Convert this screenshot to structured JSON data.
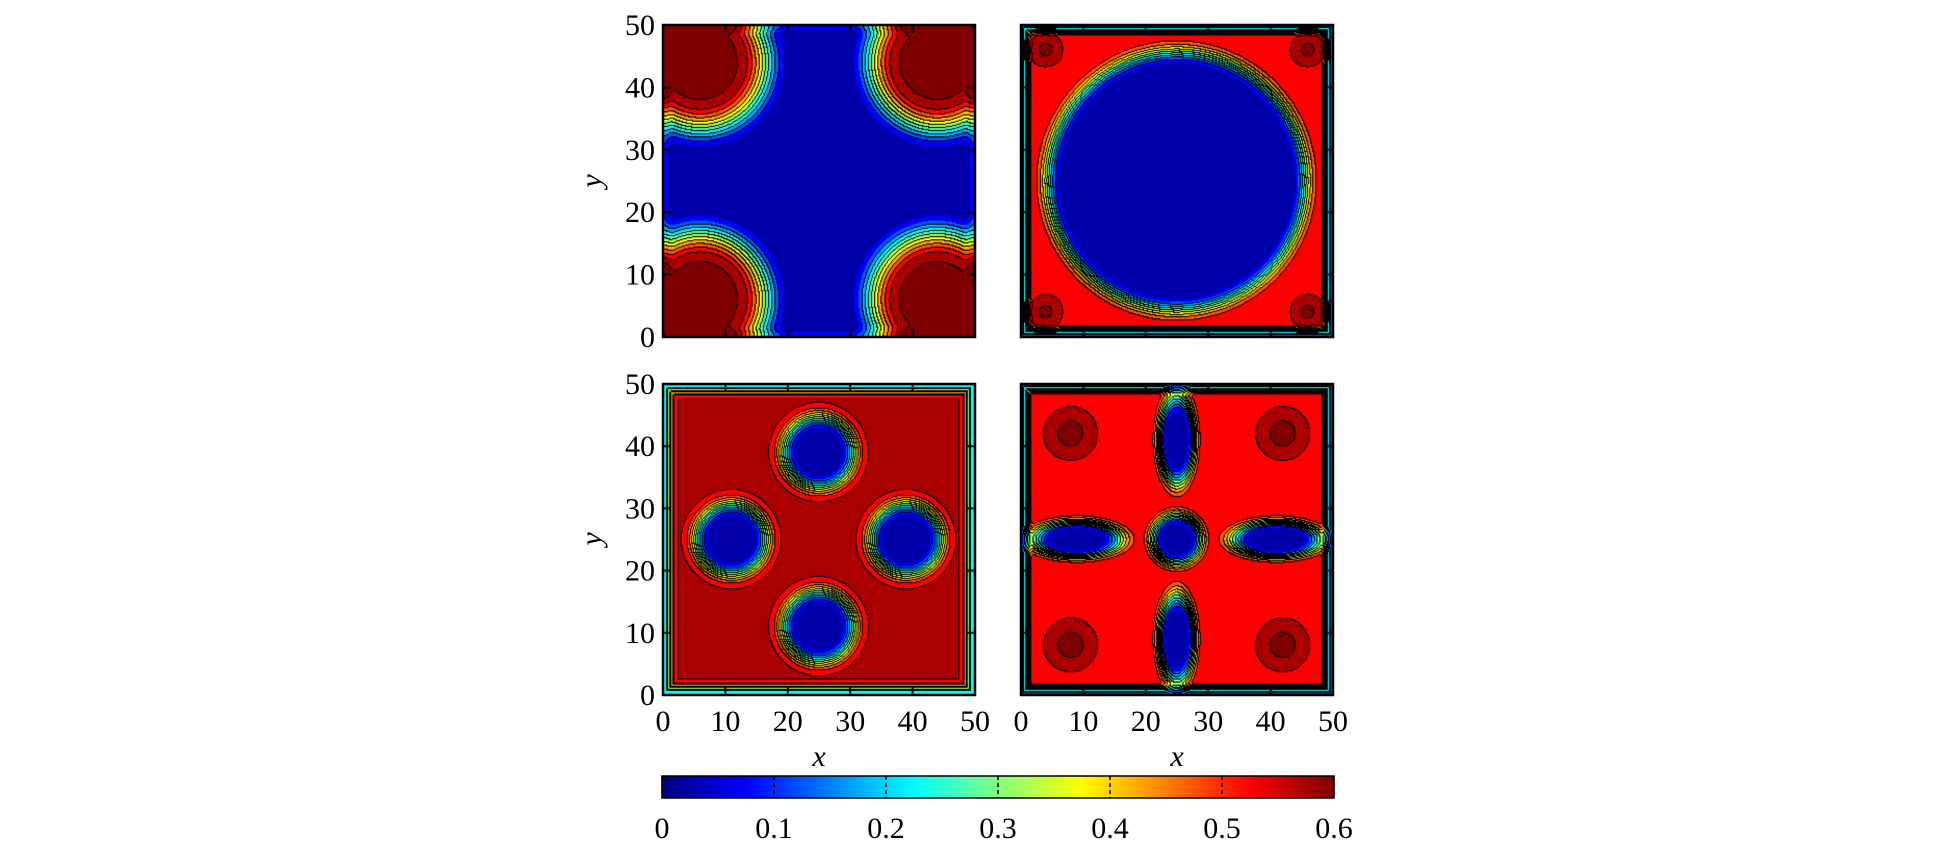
{
  "chart_data": {
    "type": "heatmap",
    "colormap": "jet",
    "colorbar": {
      "range": [
        0,
        0.6
      ],
      "ticks": [
        "0",
        "0.1",
        "0.2",
        "0.3",
        "0.4",
        "0.5",
        "0.6"
      ]
    },
    "contour_levels": [
      0.2,
      0.25,
      0.3,
      0.35,
      0.4,
      0.45,
      0.5,
      0.55
    ],
    "panels": [
      {
        "id": "top-left",
        "xlabel": "",
        "ylabel": "y",
        "xlim": [
          0,
          50
        ],
        "ylim": [
          0,
          50
        ],
        "x_ticks": [],
        "y_ticks": [
          "0",
          "10",
          "20",
          "30",
          "40",
          "50"
        ],
        "pattern": "corner-islands",
        "low": 0.0,
        "high": 0.6
      },
      {
        "id": "top-right",
        "xlabel": "",
        "ylabel": "",
        "xlim": [
          0,
          50
        ],
        "ylim": [
          0,
          50
        ],
        "x_ticks": [],
        "y_ticks": [],
        "pattern": "central-disk",
        "low": 0.0,
        "high": 0.6
      },
      {
        "id": "bottom-left",
        "xlabel": "x",
        "ylabel": "y",
        "xlim": [
          0,
          50
        ],
        "ylim": [
          0,
          50
        ],
        "x_ticks": [
          "0",
          "10",
          "20",
          "30",
          "40",
          "50"
        ],
        "y_ticks": [
          "0",
          "10",
          "20",
          "30",
          "40",
          "50"
        ],
        "pattern": "four-drops",
        "low": 0.0,
        "high": 0.55
      },
      {
        "id": "bottom-right",
        "xlabel": "x",
        "ylabel": "",
        "xlim": [
          0,
          50
        ],
        "ylim": [
          0,
          50
        ],
        "x_ticks": [
          "0",
          "10",
          "20",
          "30",
          "40",
          "50"
        ],
        "y_ticks": [],
        "pattern": "cross-channels",
        "low": 0.0,
        "high": 0.6
      }
    ]
  }
}
